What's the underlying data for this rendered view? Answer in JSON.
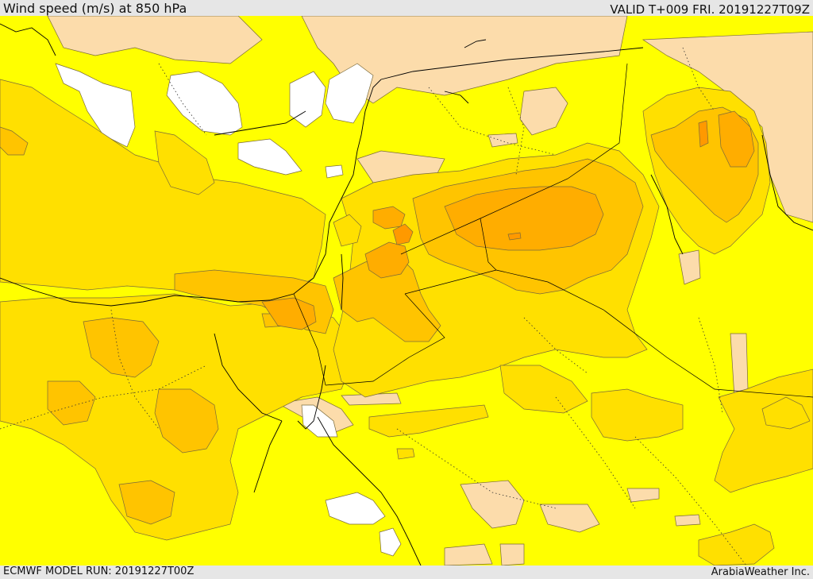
{
  "header": {
    "title": "Wind speed (m/s) at 850 hPa",
    "valid": "VALID T+009 FRI. 20191227T09Z"
  },
  "footer": {
    "model_run": "ECMWF MODEL RUN: 20191227T00Z",
    "credit": "ArabiaWeather Inc."
  },
  "map": {
    "colors": {
      "calm": "#ffffff",
      "light": "#fcdcab",
      "moderate": "#ffff00",
      "fresh": "#ffe000",
      "strong": "#ffc400",
      "stronger": "#ffad00",
      "strongest": "#ff9900",
      "coastline": "#000000",
      "contour": "#6e5a1e"
    }
  }
}
